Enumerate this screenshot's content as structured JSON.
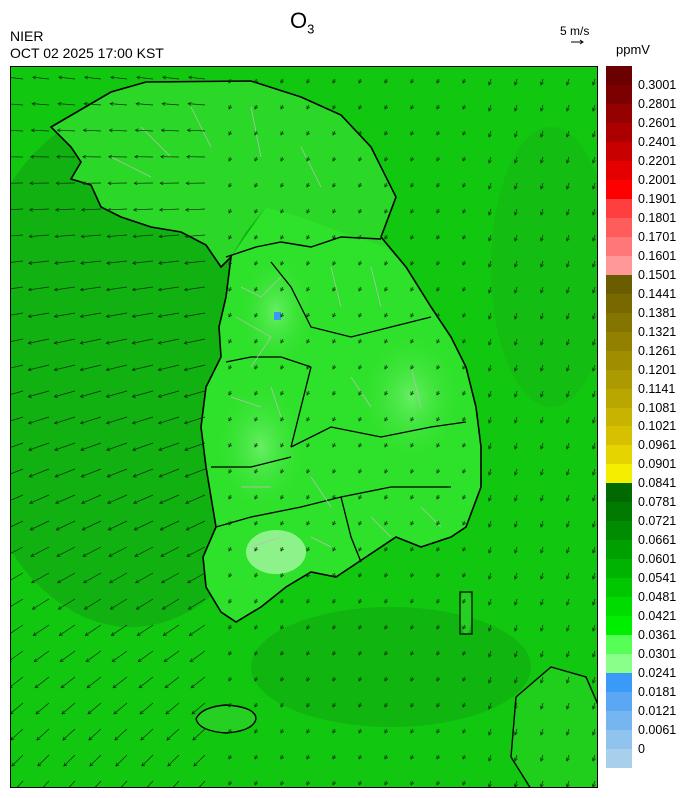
{
  "header": {
    "org": "NIER",
    "datetime": "OCT 02 2025 17:00 KST",
    "title_main": "O",
    "title_sub": "3",
    "vector_ref_label": "5 m/s",
    "unit": "ppmV"
  },
  "colorbar": {
    "ticks": [
      "0.3001",
      "0.2801",
      "0.2601",
      "0.2401",
      "0.2201",
      "0.2001",
      "0.1901",
      "0.1801",
      "0.1701",
      "0.1601",
      "0.1501",
      "0.1441",
      "0.1381",
      "0.1321",
      "0.1261",
      "0.1201",
      "0.1141",
      "0.1081",
      "0.1021",
      "0.0961",
      "0.0901",
      "0.0841",
      "0.0781",
      "0.0721",
      "0.0661",
      "0.0601",
      "0.0541",
      "0.0481",
      "0.0421",
      "0.0361",
      "0.0301",
      "0.0241",
      "0.0181",
      "0.0121",
      "0.0061",
      "0"
    ],
    "colors": [
      "#6a0000",
      "#7c0000",
      "#950000",
      "#ac0000",
      "#c80000",
      "#e40000",
      "#ff0000",
      "#ff3f3f",
      "#ff5c5c",
      "#ff7878",
      "#ff9898",
      "#6a5c00",
      "#776800",
      "#847400",
      "#928000",
      "#a08d00",
      "#ad9900",
      "#baa600",
      "#c8b300",
      "#d6c000",
      "#e6d400",
      "#f4ee00",
      "#006a00",
      "#007a00",
      "#008c00",
      "#00a000",
      "#00b300",
      "#00c700",
      "#00db00",
      "#00ee00",
      "#55ff55",
      "#8aff8a",
      "#3a9af8",
      "#5aa8f4",
      "#76b6f0",
      "#90c4ee",
      "#a8d0ec"
    ]
  },
  "map": {
    "background_color": "#12c70f",
    "sea_dark_color": "#0e9a10",
    "land_light_color": "#2ee12a",
    "hotspot_color": "#3a9af8",
    "coast_color": "#000000",
    "boundary_color": "#bdbdbd",
    "wind_arrow_color": "#0a2a0a"
  }
}
